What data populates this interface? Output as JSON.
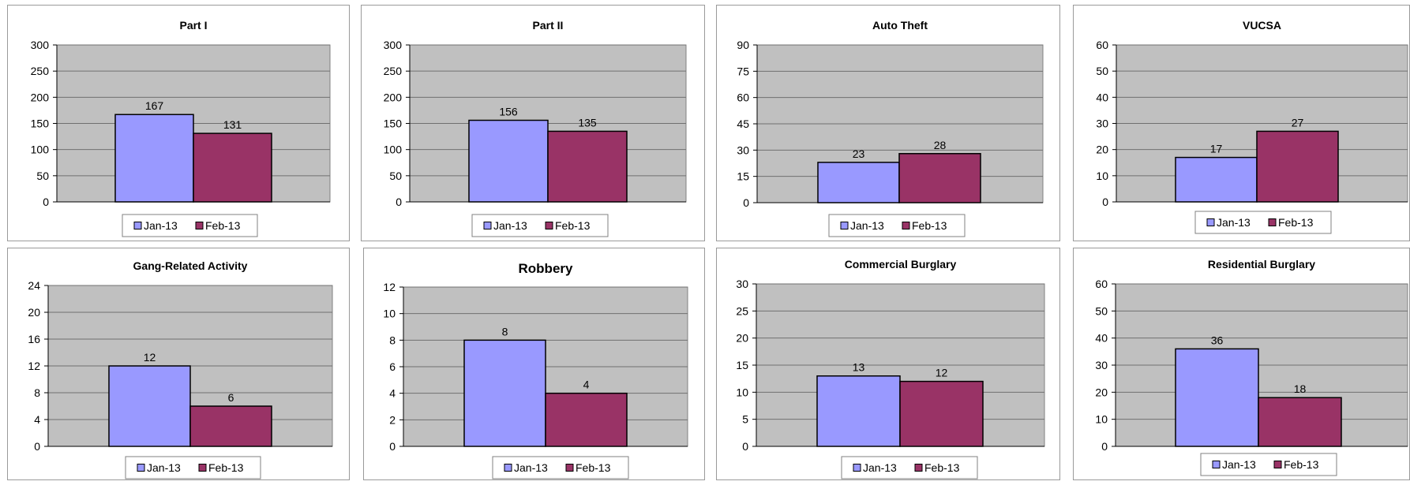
{
  "colors": {
    "jan": "#9999FF",
    "feb": "#993366",
    "plot_bg": "#C0C0C0"
  },
  "chart_data": [
    {
      "type": "bar",
      "title": "Part I",
      "categories": [
        "Jan-13",
        "Feb-13"
      ],
      "values": [
        167,
        131
      ],
      "ylim": [
        0,
        300
      ],
      "yticks": [
        0,
        50,
        100,
        150,
        200,
        250,
        300
      ],
      "grid": true,
      "legend": "bottom"
    },
    {
      "type": "bar",
      "title": "Part II",
      "categories": [
        "Jan-13",
        "Feb-13"
      ],
      "values": [
        156,
        135
      ],
      "ylim": [
        0,
        300
      ],
      "yticks": [
        0,
        50,
        100,
        150,
        200,
        250,
        300
      ],
      "grid": true,
      "legend": "bottom"
    },
    {
      "type": "bar",
      "title": "Auto Theft",
      "categories": [
        "Jan-13",
        "Feb-13"
      ],
      "values": [
        23,
        28
      ],
      "ylim": [
        0,
        90
      ],
      "yticks": [
        0,
        15,
        30,
        45,
        60,
        75,
        90
      ],
      "grid": true,
      "legend": "bottom"
    },
    {
      "type": "bar",
      "title": "VUCSA",
      "categories": [
        "Jan-13",
        "Feb-13"
      ],
      "values": [
        17,
        27
      ],
      "ylim": [
        0,
        60
      ],
      "yticks": [
        0,
        10,
        20,
        30,
        40,
        50,
        60
      ],
      "grid": true,
      "legend": "bottom"
    },
    {
      "type": "bar",
      "title": "Gang-Related Activity",
      "categories": [
        "Jan-13",
        "Feb-13"
      ],
      "values": [
        12,
        6
      ],
      "ylim": [
        0,
        24
      ],
      "yticks": [
        0,
        4,
        8,
        12,
        16,
        20,
        24
      ],
      "grid": true,
      "legend": "bottom"
    },
    {
      "type": "bar",
      "title": "Robbery",
      "categories": [
        "Jan-13",
        "Feb-13"
      ],
      "values": [
        8,
        4
      ],
      "ylim": [
        0,
        12
      ],
      "yticks": [
        0,
        2,
        4,
        6,
        8,
        10,
        12
      ],
      "grid": true,
      "legend": "bottom"
    },
    {
      "type": "bar",
      "title": "Commercial Burglary",
      "categories": [
        "Jan-13",
        "Feb-13"
      ],
      "values": [
        13,
        12
      ],
      "ylim": [
        0,
        30
      ],
      "yticks": [
        0,
        5,
        10,
        15,
        20,
        25,
        30
      ],
      "grid": true,
      "legend": "bottom"
    },
    {
      "type": "bar",
      "title": "Residential Burglary",
      "categories": [
        "Jan-13",
        "Feb-13"
      ],
      "values": [
        36,
        18
      ],
      "ylim": [
        0,
        60
      ],
      "yticks": [
        0,
        10,
        20,
        30,
        40,
        50,
        60
      ],
      "grid": true,
      "legend": "bottom"
    }
  ]
}
